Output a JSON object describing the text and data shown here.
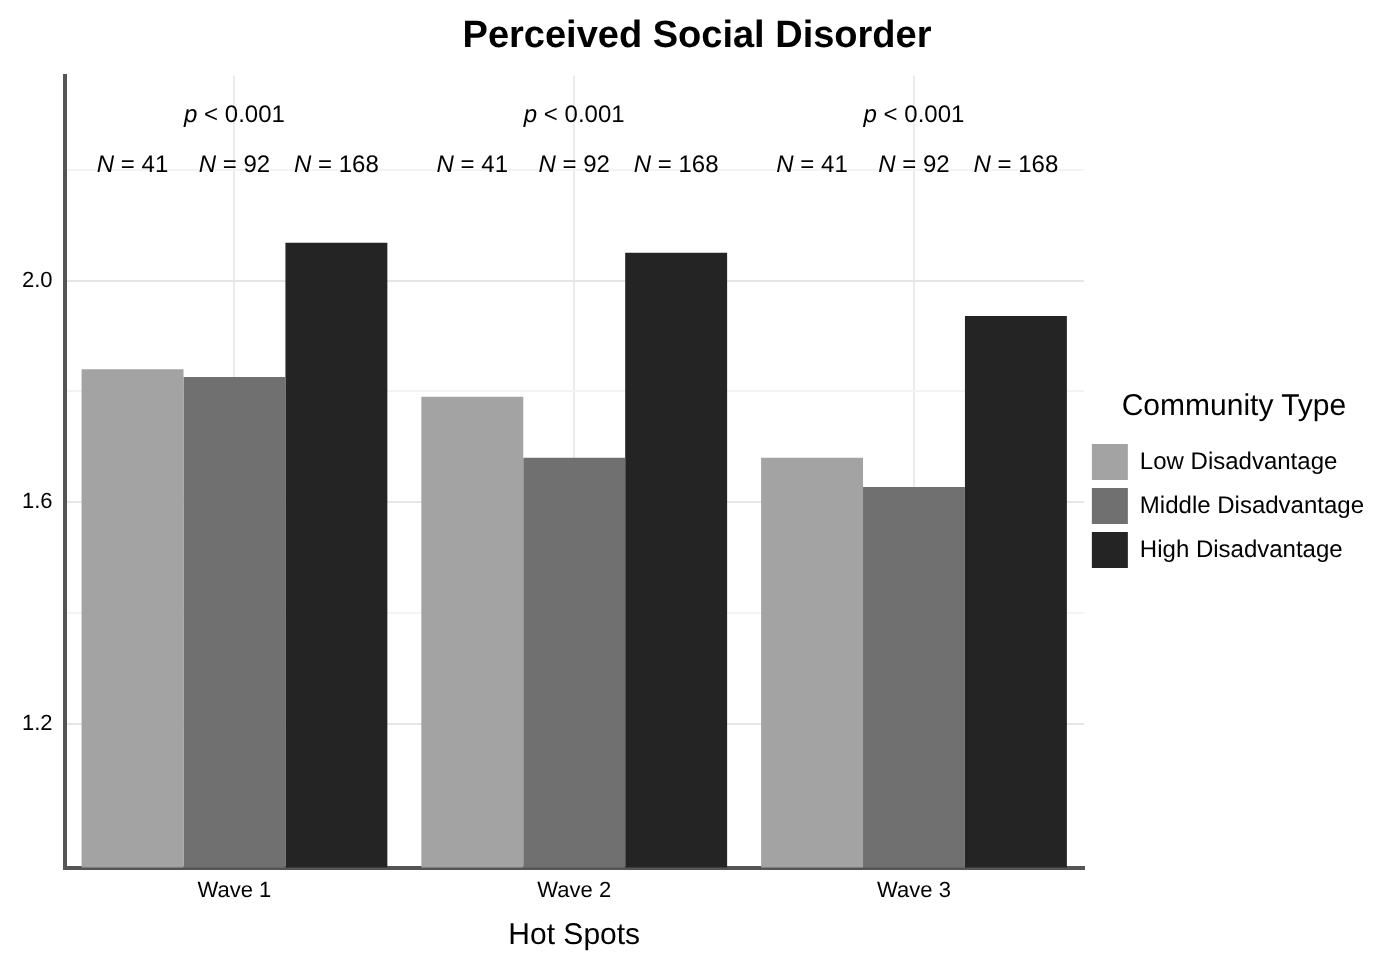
{
  "chart_data": {
    "type": "bar",
    "title": "Perceived Social Disorder",
    "xlabel": "Hot Spots",
    "legend_title": "Community Type",
    "legend": "right",
    "grid": true,
    "categories": [
      "Wave 1",
      "Wave 2",
      "Wave 3"
    ],
    "series": [
      {
        "name": "Low Disadvantage",
        "color": "#a3a3a3",
        "values": [
          1.84,
          1.79,
          1.68
        ]
      },
      {
        "name": "Middle Disadvantage",
        "color": "#707070",
        "values": [
          1.826,
          1.68,
          1.627
        ]
      },
      {
        "name": "High Disadvantage",
        "color": "#242424",
        "values": [
          2.068,
          2.05,
          1.936
        ]
      }
    ],
    "ylim": [
      0.94,
      2.37
    ],
    "yticks": [
      1.2,
      {
        "value": 1.4,
        "label": null
      },
      1.6,
      {
        "value": 1.8,
        "label": null
      },
      {
        "value": 2,
        "label": "2.0"
      },
      {
        "value": 2.2,
        "label": null
      }
    ],
    "annotations": [
      "p < 0.001",
      "p < 0.001",
      "p < 0.001",
      "N = 41",
      "N = 92",
      "N = 168",
      "N = 41",
      "N = 92",
      "N = 168",
      "N = 41",
      "N = 92",
      "N = 168"
    ]
  }
}
